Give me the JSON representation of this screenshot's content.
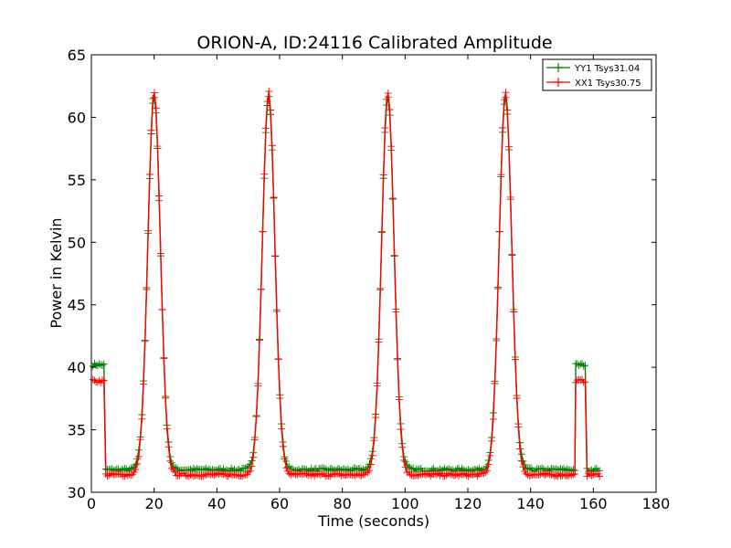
{
  "chart_data": {
    "type": "line",
    "title": "ORION-A, ID:24116 Calibrated Amplitude",
    "xlabel": "Time (seconds)",
    "ylabel": "Power in Kelvin",
    "xlim": [
      0,
      180
    ],
    "ylim": [
      30,
      65
    ],
    "xticks": [
      0,
      20,
      40,
      60,
      80,
      100,
      120,
      140,
      160,
      180
    ],
    "yticks": [
      30,
      35,
      40,
      45,
      50,
      55,
      60,
      65
    ],
    "grid": false,
    "legend": "top-right",
    "peak_centers": [
      20,
      56.5,
      94.5,
      132
    ],
    "series": [
      {
        "name": "YY1 Tsys31.04",
        "color": "#008000",
        "baseline": 31.8,
        "cal_level": 40.2,
        "peak": 61.6,
        "x": [
          0.5,
          4.2,
          4.8,
          14,
          20,
          26,
          52,
          56.5,
          62,
          89,
          94.5,
          101,
          126,
          132,
          138,
          154,
          154.5,
          157.5,
          158,
          162
        ],
        "y": [
          40.2,
          40.2,
          31.6,
          31.8,
          61.6,
          31.9,
          31.9,
          61.6,
          31.8,
          31.9,
          61.6,
          31.9,
          31.8,
          61.6,
          31.9,
          31.8,
          40.4,
          40.4,
          31.8,
          31.8
        ]
      },
      {
        "name": "XX1 Tsys30.75",
        "color": "#ff0000",
        "baseline": 31.4,
        "cal_level": 38.9,
        "peak": 62.0,
        "x": [
          0.5,
          4.2,
          4.8,
          14,
          20,
          26,
          52,
          56.5,
          62,
          89,
          94.5,
          101,
          126,
          132,
          138,
          154,
          154.5,
          157.5,
          158,
          162
        ],
        "y": [
          38.9,
          38.9,
          31.5,
          31.7,
          62.0,
          31.4,
          31.5,
          62.0,
          31.4,
          31.4,
          62.2,
          31.6,
          31.6,
          62.0,
          31.6,
          31.5,
          38.9,
          38.9,
          31.4,
          31.4
        ]
      }
    ]
  }
}
